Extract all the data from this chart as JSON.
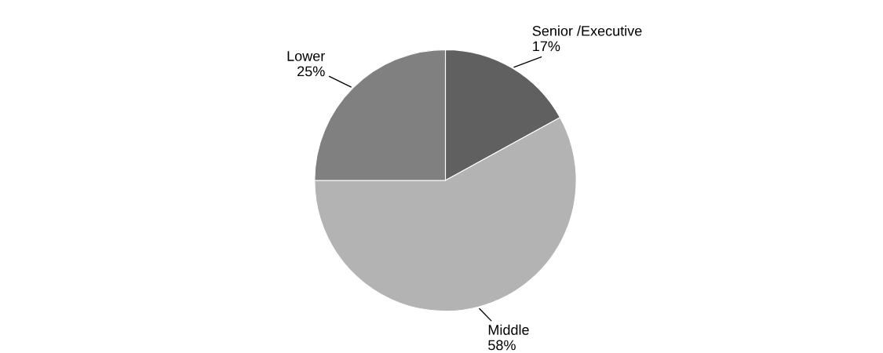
{
  "chart_data": {
    "type": "pie",
    "categories": [
      "Senior /Executive",
      "Middle",
      "Lower"
    ],
    "values": [
      17,
      58,
      25
    ],
    "colors": [
      "#606060",
      "#b3b3b3",
      "#808080"
    ],
    "value_labels": [
      "17%",
      "58%",
      "25%"
    ]
  }
}
